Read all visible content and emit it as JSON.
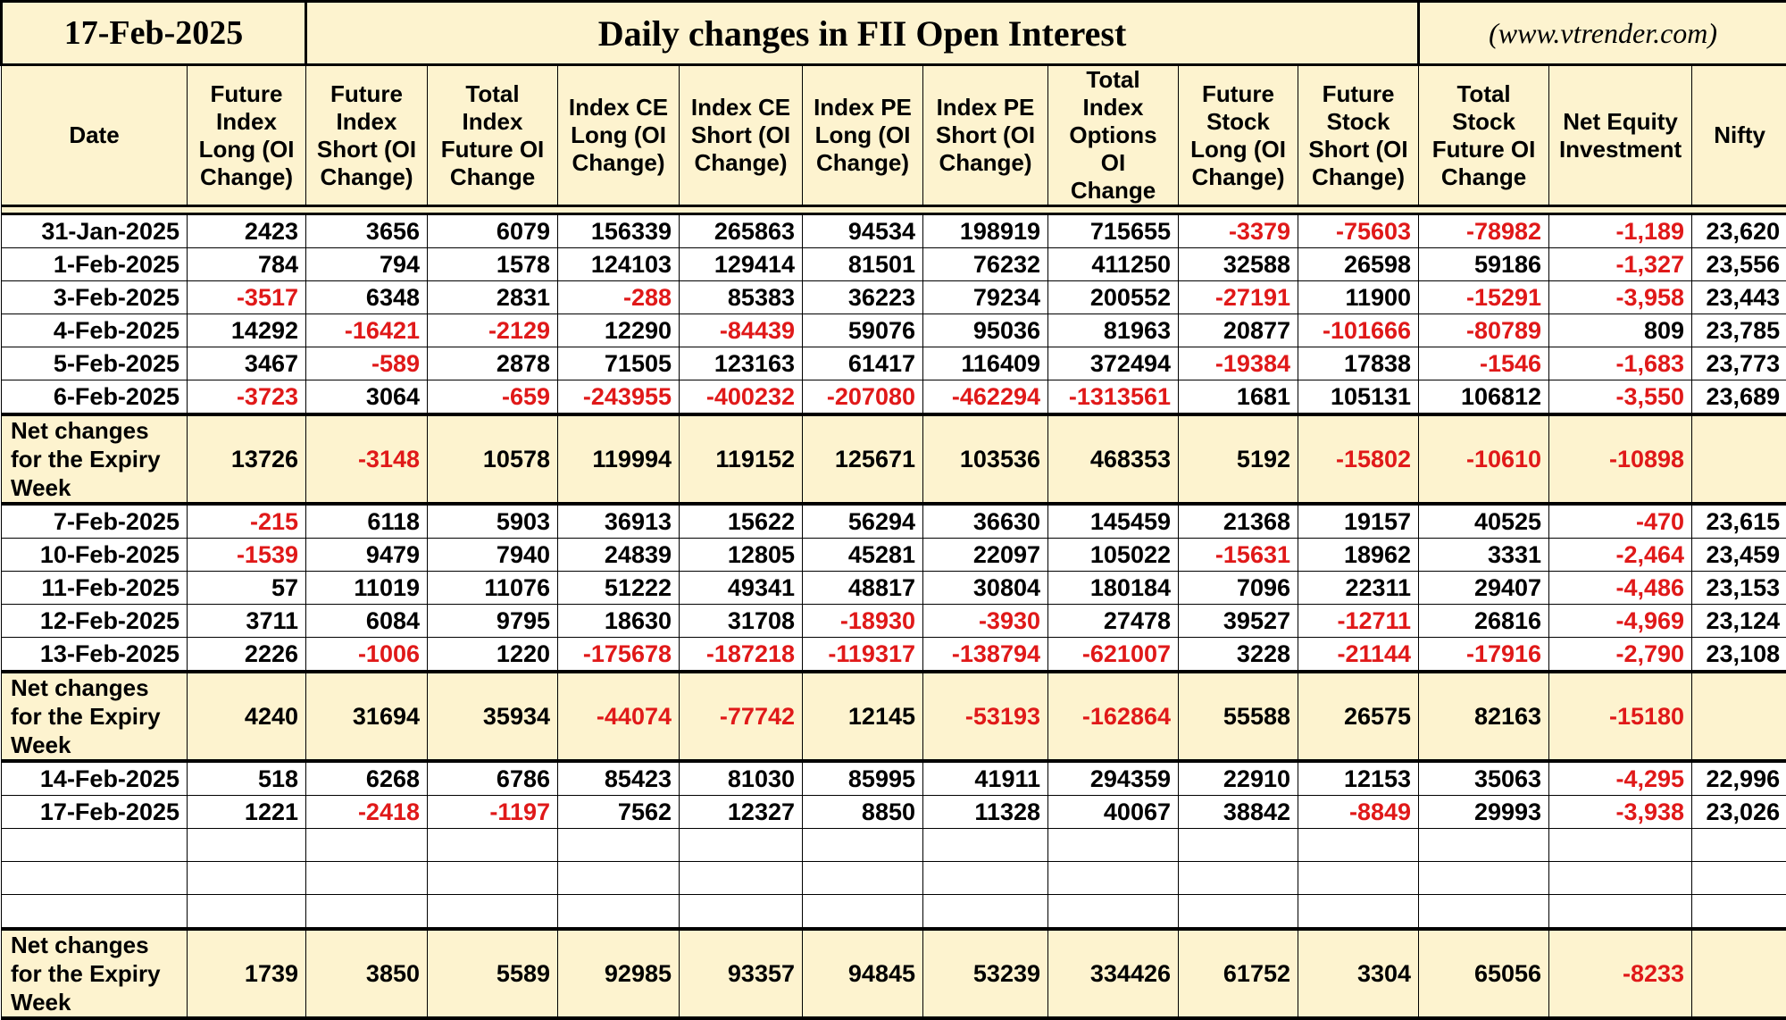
{
  "title_date": "17-Feb-2025",
  "title": "Daily changes in FII Open Interest",
  "website": "(www.vtrender.com)",
  "headers": [
    "Date",
    "Future Index Long (OI Change)",
    "Future Index Short (OI Change)",
    "Total Index Future OI Change",
    "Index CE Long (OI Change)",
    "Index CE Short (OI Change)",
    "Index PE Long (OI Change)",
    "Index PE Short (OI Change)",
    "Total Index Options OI Change",
    "Future Stock Long (OI Change)",
    "Future Stock Short (OI Change)",
    "Total Stock Future OI Change",
    "Net Equity Investment",
    "Nifty"
  ],
  "net_label": "Net changes for the Expiry Week",
  "colors": {
    "header_bg": "#fdf3cf",
    "negative": "#e01919",
    "border": "#000000"
  },
  "block1": [
    [
      "31-Jan-2025",
      "2423",
      "3656",
      "6079",
      "156339",
      "265863",
      "94534",
      "198919",
      "715655",
      "-3379",
      "-75603",
      "-78982",
      "-1,189",
      "23,620"
    ],
    [
      "1-Feb-2025",
      "784",
      "794",
      "1578",
      "124103",
      "129414",
      "81501",
      "76232",
      "411250",
      "32588",
      "26598",
      "59186",
      "-1,327",
      "23,556"
    ],
    [
      "3-Feb-2025",
      "-3517",
      "6348",
      "2831",
      "-288",
      "85383",
      "36223",
      "79234",
      "200552",
      "-27191",
      "11900",
      "-15291",
      "-3,958",
      "23,443"
    ],
    [
      "4-Feb-2025",
      "14292",
      "-16421",
      "-2129",
      "12290",
      "-84439",
      "59076",
      "95036",
      "81963",
      "20877",
      "-101666",
      "-80789",
      "809",
      "23,785"
    ],
    [
      "5-Feb-2025",
      "3467",
      "-589",
      "2878",
      "71505",
      "123163",
      "61417",
      "116409",
      "372494",
      "-19384",
      "17838",
      "-1546",
      "-1,683",
      "23,773"
    ],
    [
      "6-Feb-2025",
      "-3723",
      "3064",
      "-659",
      "-243955",
      "-400232",
      "-207080",
      "-462294",
      "-1313561",
      "1681",
      "105131",
      "106812",
      "-3,550",
      "23,689"
    ]
  ],
  "net1": [
    "13726",
    "-3148",
    "10578",
    "119994",
    "119152",
    "125671",
    "103536",
    "468353",
    "5192",
    "-15802",
    "-10610",
    "-10898",
    ""
  ],
  "block2": [
    [
      "7-Feb-2025",
      "-215",
      "6118",
      "5903",
      "36913",
      "15622",
      "56294",
      "36630",
      "145459",
      "21368",
      "19157",
      "40525",
      "-470",
      "23,615"
    ],
    [
      "10-Feb-2025",
      "-1539",
      "9479",
      "7940",
      "24839",
      "12805",
      "45281",
      "22097",
      "105022",
      "-15631",
      "18962",
      "3331",
      "-2,464",
      "23,459"
    ],
    [
      "11-Feb-2025",
      "57",
      "11019",
      "11076",
      "51222",
      "49341",
      "48817",
      "30804",
      "180184",
      "7096",
      "22311",
      "29407",
      "-4,486",
      "23,153"
    ],
    [
      "12-Feb-2025",
      "3711",
      "6084",
      "9795",
      "18630",
      "31708",
      "-18930",
      "-3930",
      "27478",
      "39527",
      "-12711",
      "26816",
      "-4,969",
      "23,124"
    ],
    [
      "13-Feb-2025",
      "2226",
      "-1006",
      "1220",
      "-175678",
      "-187218",
      "-119317",
      "-138794",
      "-621007",
      "3228",
      "-21144",
      "-17916",
      "-2,790",
      "23,108"
    ]
  ],
  "net2": [
    "4240",
    "31694",
    "35934",
    "-44074",
    "-77742",
    "12145",
    "-53193",
    "-162864",
    "55588",
    "26575",
    "82163",
    "-15180",
    ""
  ],
  "block3": [
    [
      "14-Feb-2025",
      "518",
      "6268",
      "6786",
      "85423",
      "81030",
      "85995",
      "41911",
      "294359",
      "22910",
      "12153",
      "35063",
      "-4,295",
      "22,996"
    ],
    [
      "17-Feb-2025",
      "1221",
      "-2418",
      "-1197",
      "7562",
      "12327",
      "8850",
      "11328",
      "40067",
      "38842",
      "-8849",
      "29993",
      "-3,938",
      "23,026"
    ]
  ],
  "net3": [
    "1739",
    "3850",
    "5589",
    "92985",
    "93357",
    "94845",
    "53239",
    "334426",
    "61752",
    "3304",
    "65056",
    "-8233",
    ""
  ]
}
